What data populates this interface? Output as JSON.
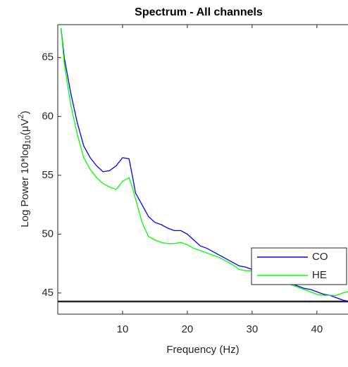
{
  "chart_data": {
    "type": "line",
    "title": "Spectrum - All channels",
    "xlabel": "Frequency (Hz)",
    "ylabel": {
      "text": "Log Power 10*log",
      "sub": "10",
      "mid": "(μV",
      "sup": "2",
      "end": ")"
    },
    "x": [
      0.5,
      1,
      2,
      3,
      4,
      5,
      6,
      7,
      8,
      9,
      10,
      11,
      11.5,
      12,
      13,
      14,
      15,
      16,
      17,
      18,
      19,
      20,
      21,
      22,
      23,
      24,
      25,
      26,
      27,
      28,
      29,
      30,
      31,
      32,
      33,
      34,
      35,
      36,
      37,
      38,
      39,
      40,
      41,
      42,
      43,
      44,
      44.8
    ],
    "series": [
      {
        "name": "CO",
        "color": "#0000ff",
        "values": [
          67.5,
          65,
          62,
          59.5,
          57.5,
          56.5,
          55.8,
          55.3,
          55.4,
          55.8,
          56.5,
          56.4,
          55,
          53.5,
          52.5,
          51.5,
          51,
          50.8,
          50.5,
          50.3,
          50.3,
          50,
          49.5,
          49,
          48.8,
          48.5,
          48.2,
          47.9,
          47.6,
          47.3,
          47.2,
          47.0,
          46.8,
          46.6,
          46.4,
          46.2,
          46.0,
          45.8,
          45.6,
          45.4,
          45.3,
          45.1,
          44.9,
          44.8,
          44.6,
          44.4,
          44.3
        ]
      },
      {
        "name": "HE",
        "color": "#00ff00",
        "values": [
          67.5,
          64.5,
          61,
          58.5,
          56.5,
          55.5,
          54.8,
          54.3,
          54,
          53.8,
          54.5,
          54.8,
          54,
          53,
          51,
          49.8,
          49.5,
          49.3,
          49.2,
          49.2,
          49.3,
          49.1,
          48.8,
          48.6,
          48.4,
          48.2,
          48.0,
          47.7,
          47.4,
          47.0,
          46.9,
          46.9,
          46.7,
          46.5,
          46.3,
          46.1,
          45.9,
          45.7,
          45.5,
          45.3,
          45.1,
          44.9,
          44.8,
          44.8,
          44.8,
          45.0,
          45.1
        ]
      }
    ],
    "xlim": [
      0,
      44.8
    ],
    "ylim": [
      43.2,
      67.8
    ],
    "xticks": [
      10,
      20,
      30,
      40
    ],
    "yticks": [
      45,
      50,
      55,
      60,
      65
    ],
    "grid": false,
    "legend": "southeast"
  }
}
